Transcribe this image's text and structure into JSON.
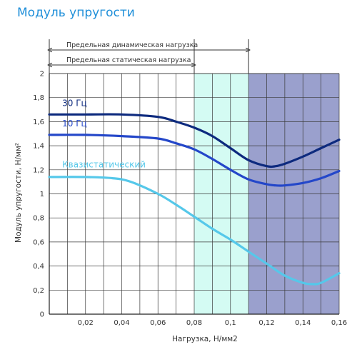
{
  "title": "Модуль упругости",
  "chart_data": {
    "type": "line",
    "title": "Модуль упругости",
    "xlabel": "Нагрузка, Н/мм2",
    "ylabel": "Модуль упругости, Н/мм²",
    "xlim": [
      0,
      0.16
    ],
    "ylim": [
      0,
      2
    ],
    "x_ticks": [
      0.02,
      0.04,
      0.06,
      0.08,
      0.1,
      0.12,
      0.14,
      0.16
    ],
    "x_tick_labels": [
      "0,02",
      "0,04",
      "0,06",
      "0,08",
      "0,1",
      "0,12",
      "0,14",
      "0,16"
    ],
    "y_ticks": [
      0,
      0.2,
      0.4,
      0.6,
      0.8,
      1,
      1.2,
      1.4,
      1.6,
      1.8,
      2
    ],
    "y_tick_labels": [
      "0",
      "0,2",
      "0,4",
      "0,6",
      "0,8",
      "1",
      "1,2",
      "1,4",
      "1,6",
      "1,8",
      "2"
    ],
    "grid": true,
    "regions": [
      {
        "x_start": 0.08,
        "x_end": 0.11,
        "color": "#d4fbf3"
      },
      {
        "x_start": 0.11,
        "x_end": 0.16,
        "color": "#9aa0cd"
      }
    ],
    "annotations": [
      {
        "label": "Предельная динамическая нагрузка",
        "x_start": 0,
        "x_end": 0.11
      },
      {
        "label": "Предельная статическая нагрузка",
        "x_start": 0,
        "x_end": 0.08
      }
    ],
    "series": [
      {
        "name": "30 Гц",
        "color": "#0d2a7e",
        "x": [
          0,
          0.02,
          0.04,
          0.06,
          0.07,
          0.08,
          0.09,
          0.1,
          0.11,
          0.12,
          0.125,
          0.13,
          0.14,
          0.15,
          0.16
        ],
        "y": [
          1.66,
          1.66,
          1.66,
          1.64,
          1.6,
          1.55,
          1.48,
          1.38,
          1.28,
          1.23,
          1.23,
          1.25,
          1.31,
          1.38,
          1.45
        ]
      },
      {
        "name": "10 Гц",
        "color": "#2447c9",
        "x": [
          0,
          0.02,
          0.04,
          0.06,
          0.07,
          0.08,
          0.09,
          0.1,
          0.11,
          0.12,
          0.125,
          0.13,
          0.14,
          0.15,
          0.16
        ],
        "y": [
          1.49,
          1.49,
          1.48,
          1.46,
          1.42,
          1.37,
          1.29,
          1.2,
          1.12,
          1.08,
          1.07,
          1.07,
          1.09,
          1.13,
          1.19
        ]
      },
      {
        "name": "Квазистатический",
        "color": "#55c8ea",
        "x": [
          0,
          0.02,
          0.035,
          0.045,
          0.06,
          0.07,
          0.08,
          0.09,
          0.1,
          0.11,
          0.12,
          0.13,
          0.14,
          0.145,
          0.15,
          0.16
        ],
        "y": [
          1.14,
          1.14,
          1.13,
          1.1,
          1.0,
          0.91,
          0.81,
          0.71,
          0.62,
          0.52,
          0.42,
          0.32,
          0.26,
          0.25,
          0.26,
          0.34
        ]
      }
    ],
    "series_label_positions": [
      {
        "name": "30 Гц",
        "x": 0.004,
        "y": 1.73
      },
      {
        "name": "10 Гц",
        "x": 0.004,
        "y": 1.56
      },
      {
        "name": "Квазистатический",
        "x": 0.004,
        "y": 1.22
      }
    ]
  }
}
